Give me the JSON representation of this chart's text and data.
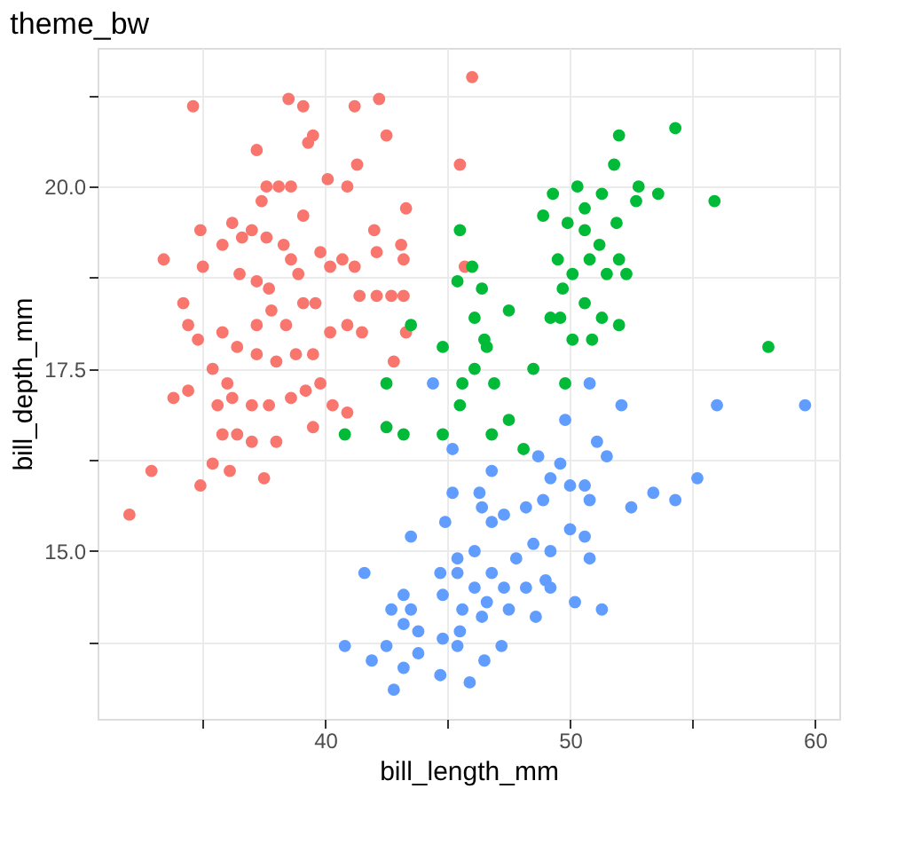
{
  "chart_data": {
    "type": "scatter",
    "title": "theme_bw",
    "xlabel": "bill_length_mm",
    "ylabel": "bill_depth_mm",
    "xlim": [
      30.7,
      61.0
    ],
    "ylim": [
      12.7,
      21.9
    ],
    "xticks": [
      {
        "value": 35,
        "label": null
      },
      40,
      {
        "value": 45,
        "label": null
      },
      50,
      {
        "value": 55,
        "label": null
      },
      60
    ],
    "yticks": [
      {
        "value": 13.75,
        "label": null
      },
      {
        "value": 15,
        "label": "15.0"
      },
      {
        "value": 16.25,
        "label": null
      },
      {
        "value": 17.5,
        "label": "17.5"
      },
      {
        "value": 18.75,
        "label": null
      },
      {
        "value": 20,
        "label": "20.0"
      },
      {
        "value": 21.25,
        "label": null
      }
    ],
    "grid": true,
    "legend": false,
    "marker": "circle",
    "series": [
      {
        "color": "#f8766d",
        "x": [
          34.6,
          38.5,
          39.1,
          41.2,
          42.2,
          42.5,
          46.0,
          37.2,
          39.3,
          39.5,
          41.3,
          40.1,
          40.9,
          37.6,
          38.1,
          38.6,
          37.4,
          39.1,
          43.3,
          34.9,
          36.2,
          35.8,
          36.6,
          37.0,
          37.6,
          38.3,
          33.4,
          35.0,
          36.5,
          37.2,
          37.7,
          38.6,
          38.9,
          39.8,
          40.2,
          40.7,
          41.2,
          42.0,
          42.1,
          43.1,
          43.2,
          41.4,
          42.1,
          42.7,
          43.2,
          34.2,
          34.4,
          34.8,
          35.8,
          36.4,
          37.2,
          37.8,
          38.4,
          39.1,
          39.6,
          40.2,
          40.9,
          41.5,
          43.3,
          35.4,
          36.0,
          36.2,
          35.6,
          37.0,
          37.7,
          38.6,
          39.2,
          39.8,
          40.3,
          40.9,
          38.0,
          38.8,
          39.5,
          42.8,
          33.8,
          34.4,
          35.8,
          36.4,
          37.0,
          38.0,
          39.5,
          35.4,
          36.1,
          34.9,
          32.9,
          37.5,
          32.0,
          45.5,
          45.7,
          37.2
        ],
        "values": [
          21.1,
          21.2,
          21.1,
          21.1,
          21.2,
          20.7,
          21.5,
          20.5,
          20.6,
          20.7,
          20.3,
          20.1,
          20.0,
          20.0,
          20.0,
          20.0,
          19.8,
          19.6,
          19.7,
          19.4,
          19.5,
          19.2,
          19.3,
          19.4,
          19.3,
          19.2,
          19.0,
          18.9,
          18.8,
          18.7,
          18.6,
          19.0,
          18.8,
          19.1,
          18.9,
          19.0,
          18.9,
          19.4,
          19.1,
          19.2,
          19.0,
          18.5,
          18.5,
          18.5,
          18.5,
          18.4,
          18.1,
          17.9,
          18.0,
          17.8,
          18.1,
          18.3,
          18.1,
          18.4,
          18.4,
          18.0,
          18.1,
          18.0,
          18.0,
          17.5,
          17.3,
          17.1,
          17.0,
          17.0,
          17.0,
          17.1,
          17.2,
          17.3,
          17.0,
          16.9,
          17.6,
          17.7,
          17.7,
          17.6,
          17.1,
          17.2,
          16.6,
          16.6,
          16.5,
          16.5,
          16.7,
          16.2,
          16.1,
          15.9,
          16.1,
          16.0,
          15.5,
          20.3,
          18.9,
          17.7
        ]
      },
      {
        "color": "#00ba38",
        "x": [
          54.3,
          52.0,
          51.8,
          50.3,
          49.3,
          51.3,
          52.8,
          53.6,
          52.7,
          55.9,
          48.9,
          49.9,
          50.6,
          51.9,
          45.5,
          50.6,
          51.2,
          50.8,
          49.5,
          52.0,
          50.1,
          51.5,
          52.3,
          46.0,
          45.4,
          46.4,
          49.7,
          50.6,
          47.5,
          49.2,
          49.6,
          51.3,
          52.0,
          46.1,
          43.5,
          50.1,
          50.9,
          58.1,
          44.8,
          46.5,
          46.6,
          46.1,
          48.5,
          42.5,
          45.6,
          46.9,
          49.8,
          45.5,
          42.5,
          43.2,
          40.8,
          44.8,
          46.8,
          47.5,
          48.1
        ],
        "values": [
          20.8,
          20.7,
          20.3,
          20.0,
          19.9,
          19.9,
          20.0,
          19.9,
          19.8,
          19.8,
          19.6,
          19.5,
          19.7,
          19.5,
          19.4,
          19.4,
          19.2,
          19.0,
          19.0,
          19.0,
          18.8,
          18.8,
          18.8,
          18.9,
          18.7,
          18.6,
          18.6,
          18.4,
          18.3,
          18.2,
          18.2,
          18.2,
          18.1,
          18.2,
          18.1,
          17.9,
          17.9,
          17.8,
          17.8,
          17.9,
          17.8,
          17.5,
          17.5,
          17.3,
          17.3,
          17.3,
          17.3,
          17.0,
          16.7,
          16.6,
          16.6,
          16.6,
          16.6,
          16.8,
          16.4
        ]
      },
      {
        "color": "#619cff",
        "x": [
          44.4,
          50.8,
          52.1,
          56.0,
          59.6,
          49.8,
          51.1,
          51.5,
          45.2,
          48.7,
          49.6,
          49.2,
          50.0,
          50.6,
          46.8,
          55.2,
          53.4,
          54.3,
          52.5,
          45.2,
          46.3,
          50.8,
          48.2,
          48.9,
          46.4,
          47.3,
          46.8,
          44.9,
          50.0,
          50.6,
          43.5,
          48.5,
          49.2,
          47.8,
          46.1,
          50.8,
          45.4,
          41.6,
          44.7,
          45.4,
          46.8,
          49.0,
          46.1,
          47.3,
          48.2,
          49.2,
          43.2,
          44.8,
          46.6,
          45.6,
          50.2,
          51.3,
          42.7,
          43.5,
          47.5,
          48.6,
          46.4,
          43.2,
          43.8,
          45.5,
          44.8,
          40.8,
          42.5,
          47.2,
          45.4,
          41.9,
          43.8,
          46.5,
          43.2,
          44.7,
          45.9,
          42.8
        ],
        "values": [
          17.3,
          17.3,
          17.0,
          17.0,
          17.0,
          16.8,
          16.5,
          16.3,
          16.4,
          16.3,
          16.2,
          16.0,
          15.9,
          15.9,
          16.1,
          16.0,
          15.8,
          15.7,
          15.6,
          15.8,
          15.8,
          15.7,
          15.6,
          15.7,
          15.6,
          15.5,
          15.4,
          15.4,
          15.3,
          15.2,
          15.2,
          15.1,
          15.0,
          14.9,
          15.0,
          14.9,
          14.9,
          14.7,
          14.7,
          14.7,
          14.7,
          14.6,
          14.5,
          14.5,
          14.5,
          14.5,
          14.4,
          14.4,
          14.3,
          14.2,
          14.3,
          14.2,
          14.2,
          14.2,
          14.2,
          14.1,
          14.1,
          14.0,
          13.9,
          13.9,
          13.8,
          13.7,
          13.7,
          13.7,
          13.7,
          13.5,
          13.6,
          13.5,
          13.4,
          13.3,
          13.2,
          13.1
        ]
      }
    ]
  }
}
